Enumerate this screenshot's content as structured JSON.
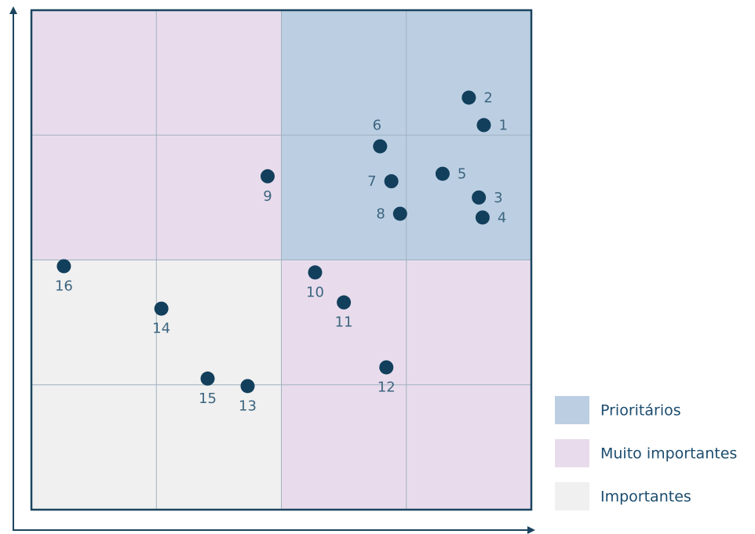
{
  "chart_data": {
    "type": "scatter",
    "xlim": [
      0,
      4
    ],
    "ylim": [
      0,
      4
    ],
    "grid": {
      "x": [
        1,
        2,
        3
      ],
      "y": [
        1,
        2,
        3
      ],
      "color": "#9fb1c0"
    },
    "color": "#123f5c",
    "regions": [
      {
        "name": "Prioritários",
        "color": "#bccfe2",
        "cells": [
          [
            2,
            4,
            2,
            4
          ]
        ]
      },
      {
        "name": "Muito importantes",
        "color": "#e8dcec",
        "cells": [
          [
            0,
            2,
            2,
            4
          ],
          [
            2,
            4,
            0,
            2
          ]
        ]
      },
      {
        "name": "Importantes",
        "color": "#f0f0f0",
        "cells": [
          [
            0,
            2,
            0,
            2
          ]
        ]
      }
    ],
    "labels": [
      "1",
      "2",
      "3",
      "4",
      "5",
      "6",
      "7",
      "8",
      "9",
      "10",
      "11",
      "12",
      "13",
      "14",
      "15",
      "16"
    ],
    "x": [
      3.62,
      3.5,
      3.58,
      3.61,
      3.29,
      2.79,
      2.88,
      2.95,
      1.89,
      2.27,
      2.5,
      2.84,
      1.73,
      1.04,
      1.41,
      0.26
    ],
    "y": [
      3.08,
      3.3,
      2.5,
      2.34,
      2.69,
      2.91,
      2.63,
      2.37,
      2.67,
      1.9,
      1.66,
      1.14,
      0.99,
      1.61,
      1.05,
      1.95
    ]
  }
}
